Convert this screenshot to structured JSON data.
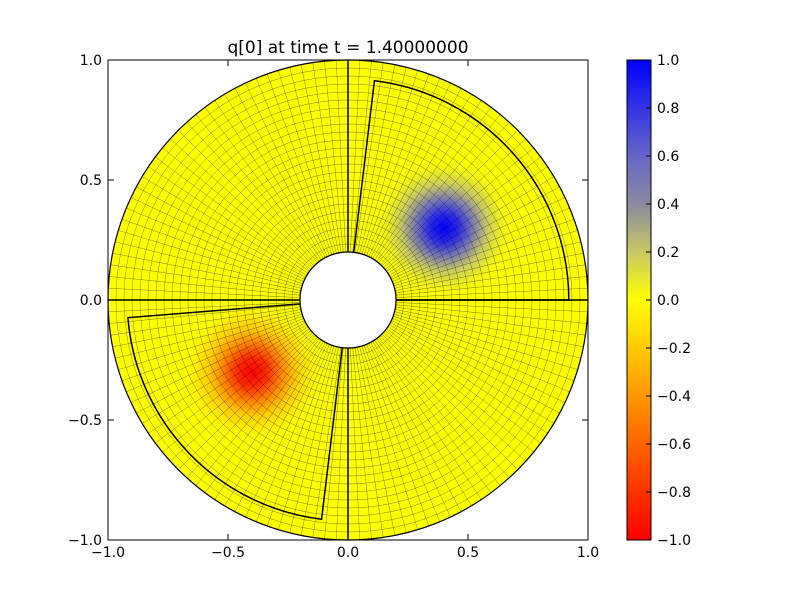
{
  "chart_data": {
    "type": "heatmap",
    "title": "q[0] at time t =      1.40000000",
    "xlabel": "",
    "ylabel": "",
    "xlim": [
      -1.0,
      1.0
    ],
    "ylim": [
      -1.0,
      1.0
    ],
    "x_ticks": [
      {
        "value": -1.0,
        "label": "−1.0"
      },
      {
        "value": -0.5,
        "label": "−0.5"
      },
      {
        "value": 0.0,
        "label": "0.0"
      },
      {
        "value": 0.5,
        "label": "0.5"
      },
      {
        "value": 1.0,
        "label": "1.0"
      }
    ],
    "y_ticks": [
      {
        "value": -1.0,
        "label": "−1.0"
      },
      {
        "value": -0.5,
        "label": "−0.5"
      },
      {
        "value": 0.0,
        "label": "0.0"
      },
      {
        "value": 0.5,
        "label": "0.5"
      },
      {
        "value": 1.0,
        "label": "1.0"
      }
    ],
    "domain": {
      "shape": "annulus",
      "inner_radius": 0.2,
      "outer_radius": 1.0
    },
    "colormap": [
      {
        "value": -1.0,
        "color": "#ff0000"
      },
      {
        "value": -0.6,
        "color": "#ff6400"
      },
      {
        "value": -0.3,
        "color": "#ffb000"
      },
      {
        "value": 0.0,
        "color": "#ffff00"
      },
      {
        "value": 0.2,
        "color": "#c8c864"
      },
      {
        "value": 0.4,
        "color": "#8a8aa0"
      },
      {
        "value": 0.6,
        "color": "#6666c8"
      },
      {
        "value": 1.0,
        "color": "#0000ff"
      }
    ],
    "pulses": [
      {
        "x": 0.4,
        "y": 0.3,
        "peak": 1.0,
        "sigma": 0.1
      },
      {
        "x": -0.4,
        "y": -0.3,
        "peak": -1.0,
        "sigma": 0.1
      }
    ],
    "colorbar": {
      "min": -1.0,
      "max": 1.0,
      "ticks": [
        {
          "value": 1.0,
          "label": "1.0"
        },
        {
          "value": 0.8,
          "label": "0.8"
        },
        {
          "value": 0.6,
          "label": "0.6"
        },
        {
          "value": 0.4,
          "label": "0.4"
        },
        {
          "value": 0.2,
          "label": "0.2"
        },
        {
          "value": 0.0,
          "label": "0.0"
        },
        {
          "value": -0.2,
          "label": "−0.2"
        },
        {
          "value": -0.4,
          "label": "−0.4"
        },
        {
          "value": -0.6,
          "label": "−0.6"
        },
        {
          "value": -0.8,
          "label": "−0.8"
        },
        {
          "value": -1.0,
          "label": "−1.0"
        }
      ]
    },
    "grid": false
  }
}
